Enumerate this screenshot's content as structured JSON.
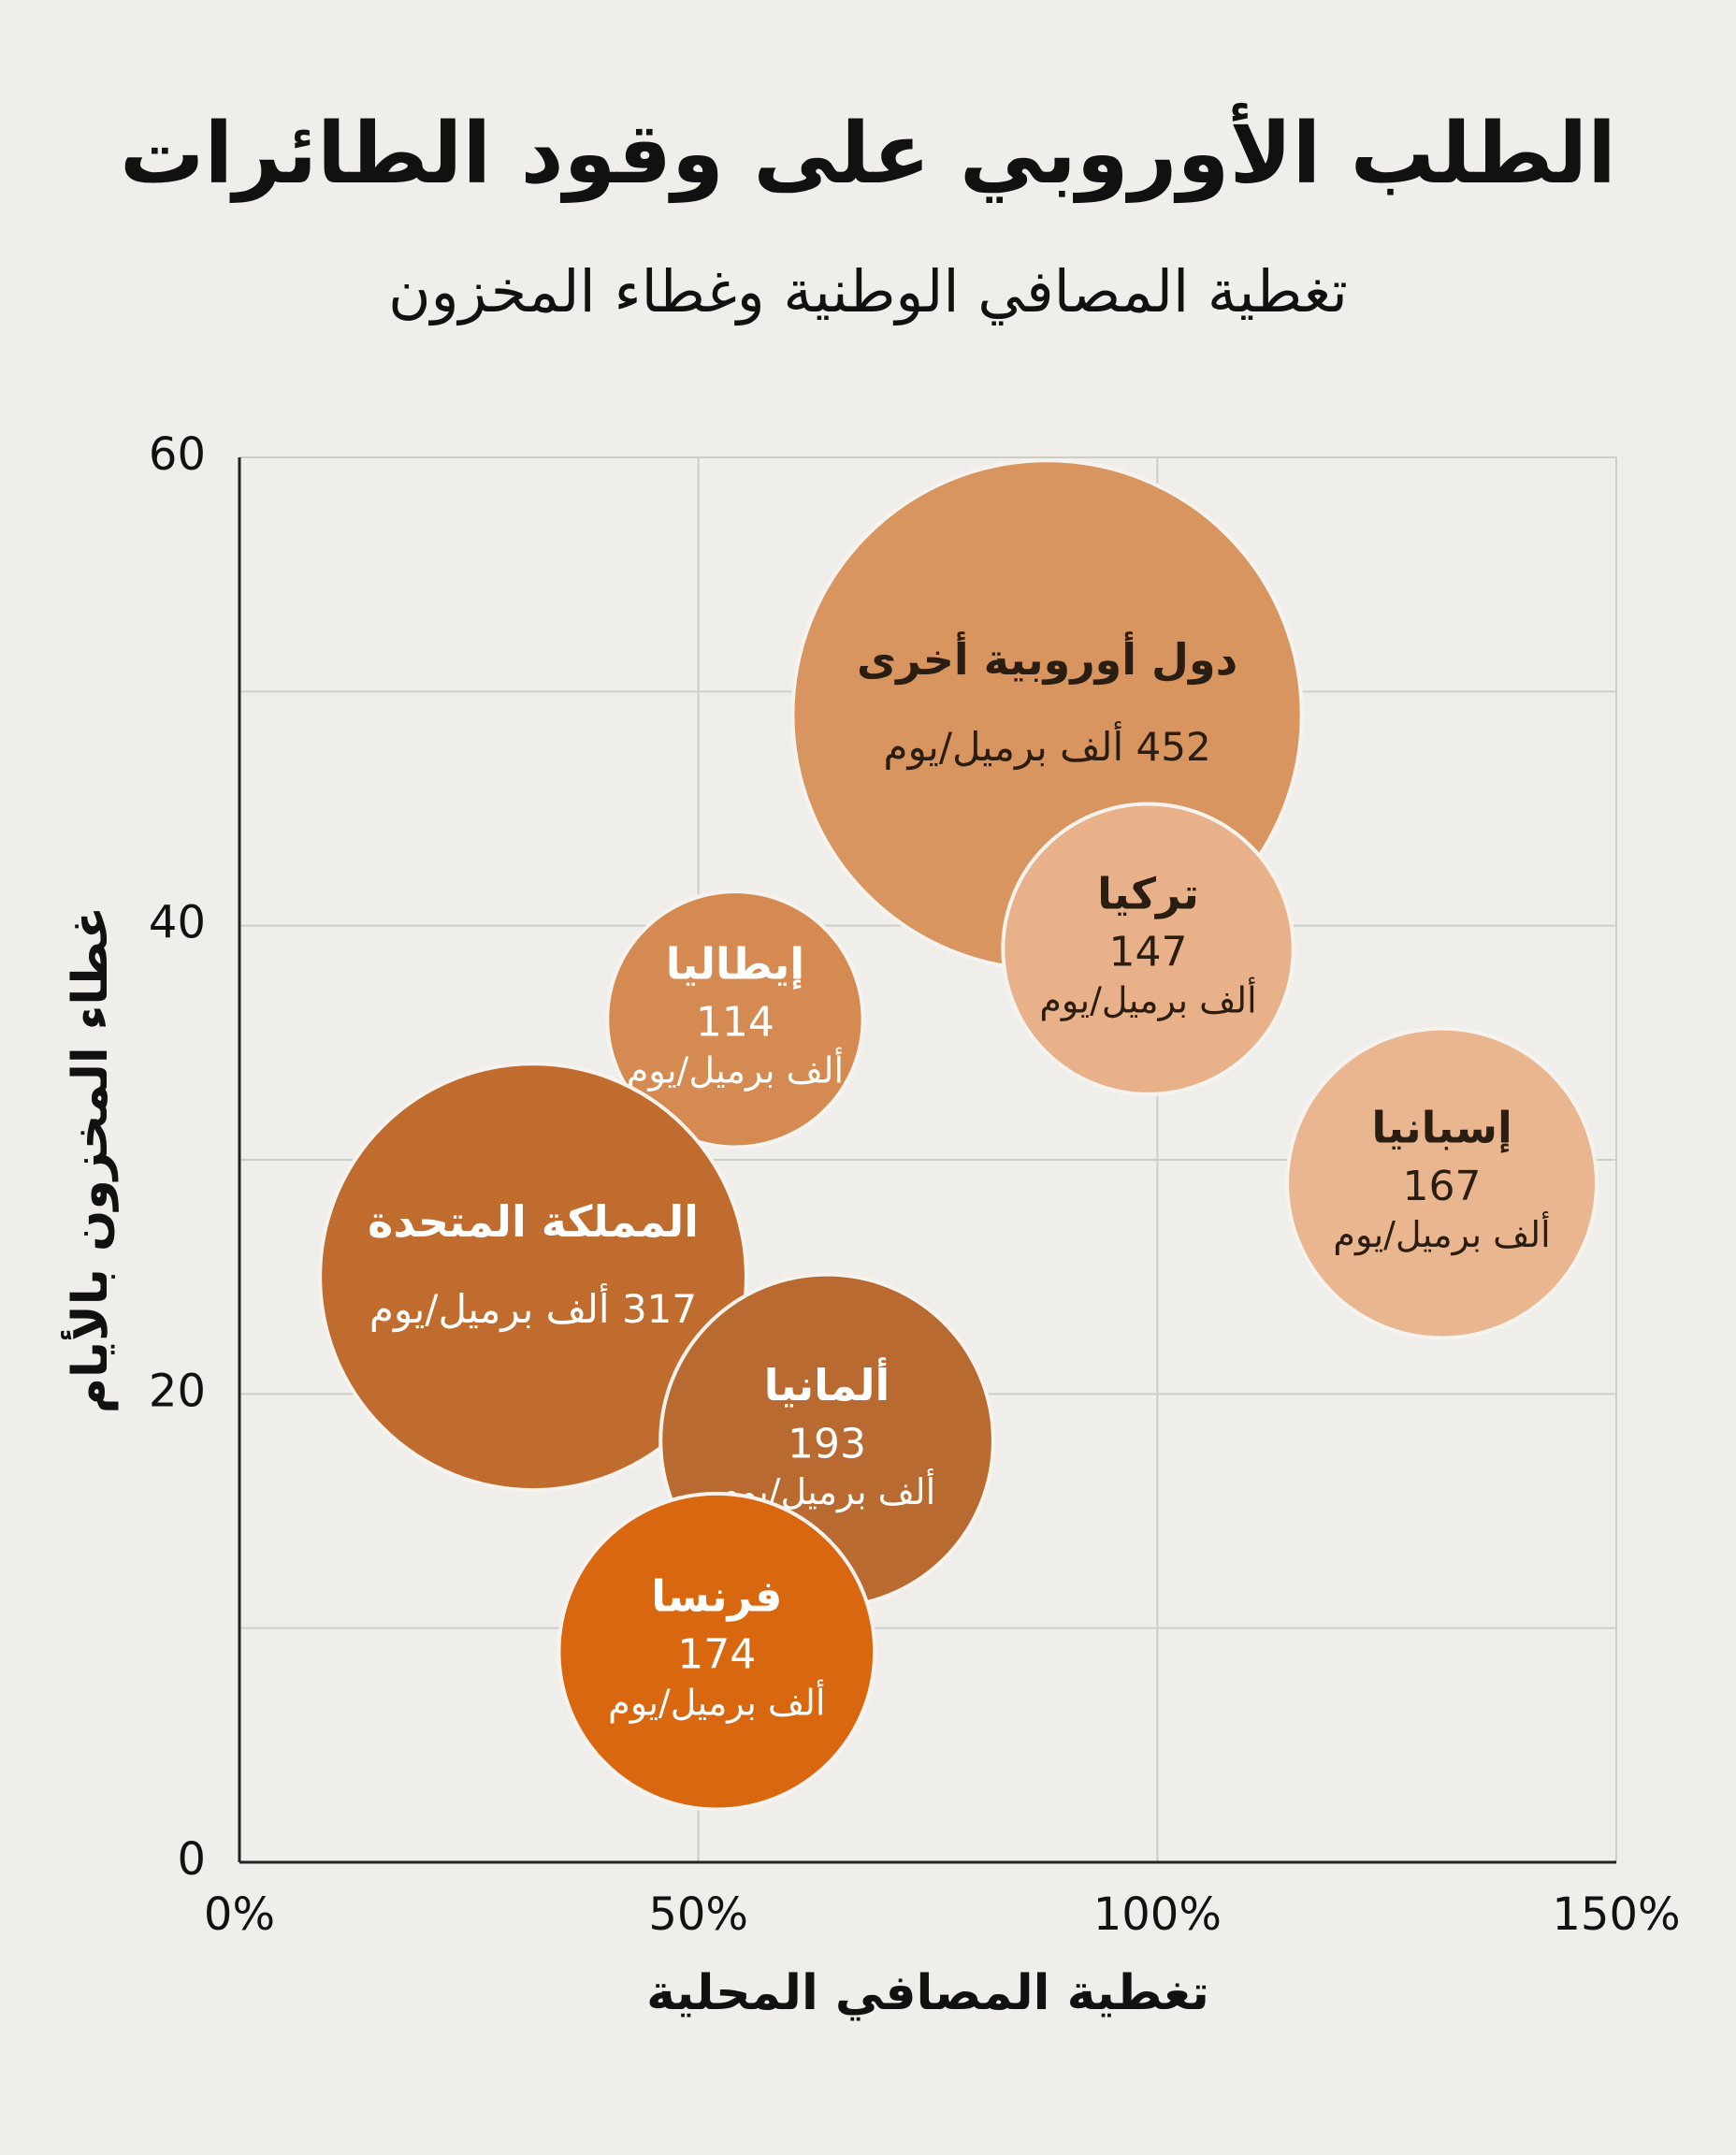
{
  "chart_data": {
    "type": "bubble",
    "title": "الطلب الأوروبي على وقود الطائرات",
    "subtitle": "تغطية المصافي الوطنية وغطاء المخزون",
    "x_label": "تغطية المصافي المحلية",
    "y_label": "غطاء المخزون بالأيام",
    "size_unit": "ألف برميل/يوم",
    "xlim": [
      0,
      150
    ],
    "xticks": [
      {
        "value": 0,
        "label": "0%"
      },
      {
        "value": 50,
        "label": "50%"
      },
      {
        "value": 100,
        "label": "100%"
      },
      {
        "value": 150,
        "label": "150%"
      }
    ],
    "ylim": [
      0,
      60
    ],
    "yticks": [
      0,
      20,
      40,
      60
    ],
    "yminor": [
      10,
      30,
      50
    ],
    "grid": true,
    "series": [
      {
        "name": "دول أوروبية أخرى",
        "color": "#d9955f",
        "x": [
          88
        ],
        "values": [
          49
        ],
        "sizes": [
          452
        ]
      },
      {
        "name": "تركيا",
        "color": "#e8b189",
        "x": [
          99
        ],
        "values": [
          39
        ],
        "sizes": [
          147
        ]
      },
      {
        "name": "إيطاليا",
        "color": "#d48a51",
        "x": [
          54
        ],
        "values": [
          36
        ],
        "sizes": [
          114
        ]
      },
      {
        "name": "إسبانيا",
        "color": "#e9b690",
        "x": [
          131
        ],
        "values": [
          29
        ],
        "sizes": [
          167
        ]
      },
      {
        "name": "المملكة المتحدة",
        "color": "#bf6c2e",
        "x": [
          32
        ],
        "values": [
          25
        ],
        "sizes": [
          317
        ]
      },
      {
        "name": "ألمانيا",
        "color": "#b96a30",
        "x": [
          64
        ],
        "values": [
          18
        ],
        "sizes": [
          193
        ]
      },
      {
        "name": "فرنسا",
        "color": "#d9670f",
        "x": [
          52
        ],
        "values": [
          9
        ],
        "sizes": [
          174
        ]
      }
    ]
  }
}
